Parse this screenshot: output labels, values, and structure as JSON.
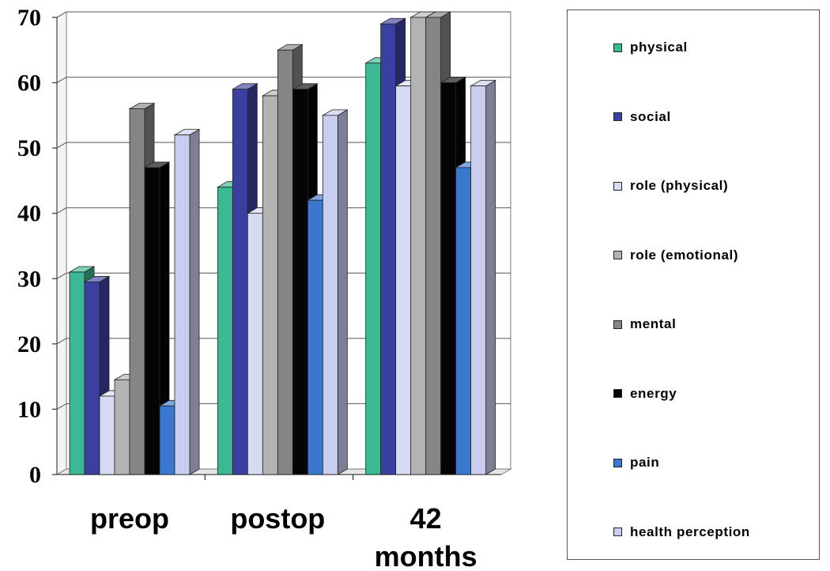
{
  "chart_data": {
    "type": "bar",
    "title": "",
    "xlabel": "",
    "ylabel": "",
    "ylim": [
      0,
      70
    ],
    "yticks": [
      "0",
      "10",
      "20",
      "30",
      "40",
      "50",
      "60",
      "70"
    ],
    "categories": [
      "preop",
      "postop",
      "42\nmonths"
    ],
    "legend_position": "right",
    "three_d": true,
    "grid": true,
    "series": [
      {
        "name": "physical",
        "color": "#3cb894",
        "values": [
          31,
          44,
          63
        ]
      },
      {
        "name": "social",
        "color": "#3b3fa0",
        "values": [
          29.5,
          59,
          69
        ]
      },
      {
        "name": "role (physical)",
        "color": "#d6daf2",
        "values": [
          12,
          40,
          59.5
        ]
      },
      {
        "name": "role (emotional)",
        "color": "#b3b3b3",
        "values": [
          14.5,
          58,
          70
        ]
      },
      {
        "name": "mental",
        "color": "#858585",
        "values": [
          56,
          65,
          70
        ]
      },
      {
        "name": "energy",
        "color": "#050505",
        "values": [
          47,
          59,
          60
        ]
      },
      {
        "name": "pain",
        "color": "#3a78cf",
        "values": [
          10.5,
          42,
          47
        ]
      },
      {
        "name": "health perception",
        "color": "#c9cdef",
        "values": [
          52,
          55,
          59.5
        ]
      }
    ]
  }
}
